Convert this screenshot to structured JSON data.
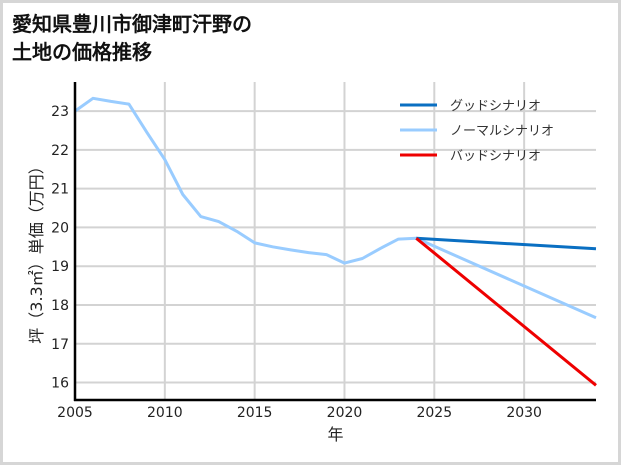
{
  "title_line1": "愛知県豊川市御津町汗野の",
  "title_line2": "土地の価格推移",
  "chart_data": {
    "type": "line",
    "title": "愛知県豊川市御津町汗野の土地の価格推移",
    "xlabel": "年",
    "ylabel": "坪（3.3㎡）単価（万円）",
    "xlim": [
      2005,
      2034
    ],
    "ylim": [
      15.55,
      23.75
    ],
    "xticks": [
      2005,
      2010,
      2015,
      2020,
      2025,
      2030
    ],
    "yticks": [
      16,
      17,
      18,
      19,
      20,
      21,
      22,
      23
    ],
    "grid": true,
    "legend_position": "upper right",
    "series": [
      {
        "name": "グッドシナリオ",
        "color": "#0a6fc2",
        "x": [
          2024,
          2034
        ],
        "y": [
          19.72,
          19.45
        ]
      },
      {
        "name": "ノーマルシナリオ",
        "color": "#99ccff",
        "x": [
          2005,
          2006,
          2007,
          2008,
          2009,
          2010,
          2011,
          2012,
          2013,
          2014,
          2015,
          2016,
          2017,
          2018,
          2019,
          2020,
          2021,
          2022,
          2023,
          2024,
          2034
        ],
        "y": [
          23.0,
          23.33,
          23.25,
          23.18,
          22.45,
          21.75,
          20.85,
          20.28,
          20.15,
          19.9,
          19.6,
          19.5,
          19.42,
          19.35,
          19.3,
          19.08,
          19.2,
          19.46,
          19.7,
          19.72,
          17.67
        ]
      },
      {
        "name": "バッドシナリオ",
        "color": "#ee0000",
        "x": [
          2024,
          2034
        ],
        "y": [
          19.72,
          15.93
        ]
      }
    ]
  }
}
